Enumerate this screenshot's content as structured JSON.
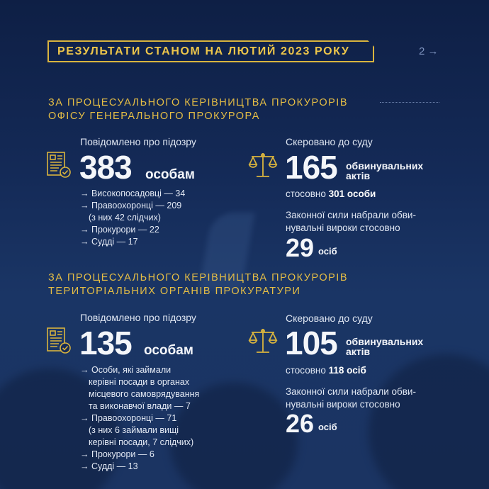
{
  "header": {
    "title": "РЕЗУЛЬТАТИ СТАНОМ НА ЛЮТИЙ 2023 РОКУ",
    "page": "2 →"
  },
  "colors": {
    "background": "#142a57",
    "accent": "#e6be45",
    "text": "#f4f6fa"
  },
  "sections": [
    {
      "heading": "ЗА ПРОЦЕСУАЛЬНОГО КЕРІВНИЦТВА ПРОКУРОРІВ ОФІСУ ГЕНЕРАЛЬНОГО ПРОКУРОРА",
      "suspicion": {
        "label": "Повідомлено про підозру",
        "icon": "document-check-icon",
        "value": "383",
        "unit": "особам",
        "items": [
          [
            "→ Високопосадовці — 34"
          ],
          [
            "→ Правоохоронці — 209",
            "(з них 42 слідчих)"
          ],
          [
            "→ Прокурори — 22"
          ],
          [
            "→ Судді — 17"
          ]
        ]
      },
      "court": {
        "label": "Скеровано до суду",
        "icon": "scales-icon",
        "value": "165",
        "unit_line1": "обвинувальних",
        "unit_line2": "актів",
        "regarding_prefix": "стосовно",
        "regarding_value": "301 особи",
        "verdict_line1": "Законної сили набрали обви-",
        "verdict_line2": "нувальні вироки стосовно",
        "verdict_value": "29",
        "verdict_unit": "осіб"
      }
    },
    {
      "heading": "ЗА ПРОЦЕСУАЛЬНОГО КЕРІВНИЦТВА ПРОКУРОРІВ ТЕРИТОРІАЛЬНИХ ОРГАНІВ ПРОКУРАТУРИ",
      "suspicion": {
        "label": "Повідомлено про підозру",
        "icon": "document-check-icon",
        "value": "135",
        "unit": "особам",
        "items": [
          [
            "→ Особи, які займали",
            "керівні посади в органах",
            "місцевого самоврядування",
            "та виконавчої влади — 7"
          ],
          [
            "→ Правоохоронці — 71",
            "(з них 6 займали вищі",
            "керівні посади, 7 слідчих)"
          ],
          [
            "→ Прокурори — 6"
          ],
          [
            "→ Судді — 13"
          ]
        ]
      },
      "court": {
        "label": "Скеровано до суду",
        "icon": "scales-icon",
        "value": "105",
        "unit_line1": "обвинувальних",
        "unit_line2": "актів",
        "regarding_prefix": "стосовно",
        "regarding_value": "118 осіб",
        "verdict_line1": "Законної сили набрали обви-",
        "verdict_line2": "нувальні вироки стосовно",
        "verdict_value": "26",
        "verdict_unit": "осіб"
      }
    }
  ]
}
